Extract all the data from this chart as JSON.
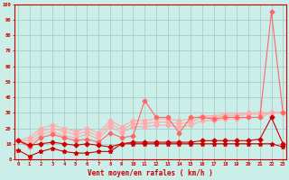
{
  "x": [
    0,
    1,
    2,
    3,
    4,
    5,
    6,
    7,
    8,
    9,
    10,
    11,
    12,
    13,
    14,
    15,
    16,
    17,
    18,
    19,
    20,
    21,
    22,
    23
  ],
  "line_dark1": [
    6,
    2,
    5,
    7,
    5,
    4,
    4,
    5,
    5,
    10,
    10,
    10,
    10,
    10,
    10,
    10,
    10,
    10,
    10,
    10,
    10,
    10,
    10,
    8
  ],
  "line_dark2": [
    12,
    9,
    10,
    11,
    10,
    9,
    10,
    9,
    8,
    10,
    11,
    11,
    11,
    11,
    11,
    11,
    12,
    12,
    12,
    12,
    12,
    13,
    27,
    10
  ],
  "line_mid1": [
    12,
    8,
    14,
    16,
    14,
    12,
    13,
    11,
    17,
    14,
    15,
    38,
    27,
    27,
    17,
    27,
    27,
    26,
    27,
    27,
    27,
    27,
    95,
    30
  ],
  "line_pink1": [
    12,
    10,
    16,
    18,
    15,
    14,
    16,
    13,
    21,
    17,
    21,
    21,
    22,
    22,
    21,
    22,
    25,
    25,
    26,
    26,
    27,
    27,
    30,
    30
  ],
  "line_pink2": [
    12,
    12,
    18,
    20,
    18,
    16,
    18,
    15,
    23,
    19,
    23,
    23,
    24,
    24,
    23,
    24,
    27,
    27,
    28,
    28,
    29,
    29,
    30,
    30
  ],
  "line_pink3": [
    12,
    14,
    20,
    22,
    20,
    18,
    20,
    17,
    25,
    21,
    25,
    25,
    26,
    26,
    25,
    26,
    28,
    28,
    29,
    29,
    30,
    30,
    30,
    30
  ],
  "xlabel": "Vent moyen/en rafales ( km/h )",
  "xticks": [
    0,
    1,
    2,
    3,
    4,
    5,
    6,
    7,
    8,
    9,
    10,
    11,
    12,
    13,
    14,
    15,
    16,
    17,
    18,
    19,
    20,
    21,
    22,
    23
  ],
  "yticks": [
    0,
    10,
    20,
    30,
    40,
    50,
    60,
    70,
    80,
    90,
    100
  ],
  "ylim": [
    0,
    100
  ],
  "xlim": [
    -0.3,
    23.3
  ],
  "bg_color": "#cceee8",
  "grid_color": "#aacccc",
  "dark_red": "#cc0000",
  "mid_red": "#ff6666",
  "light_pink": "#ffaaaa"
}
